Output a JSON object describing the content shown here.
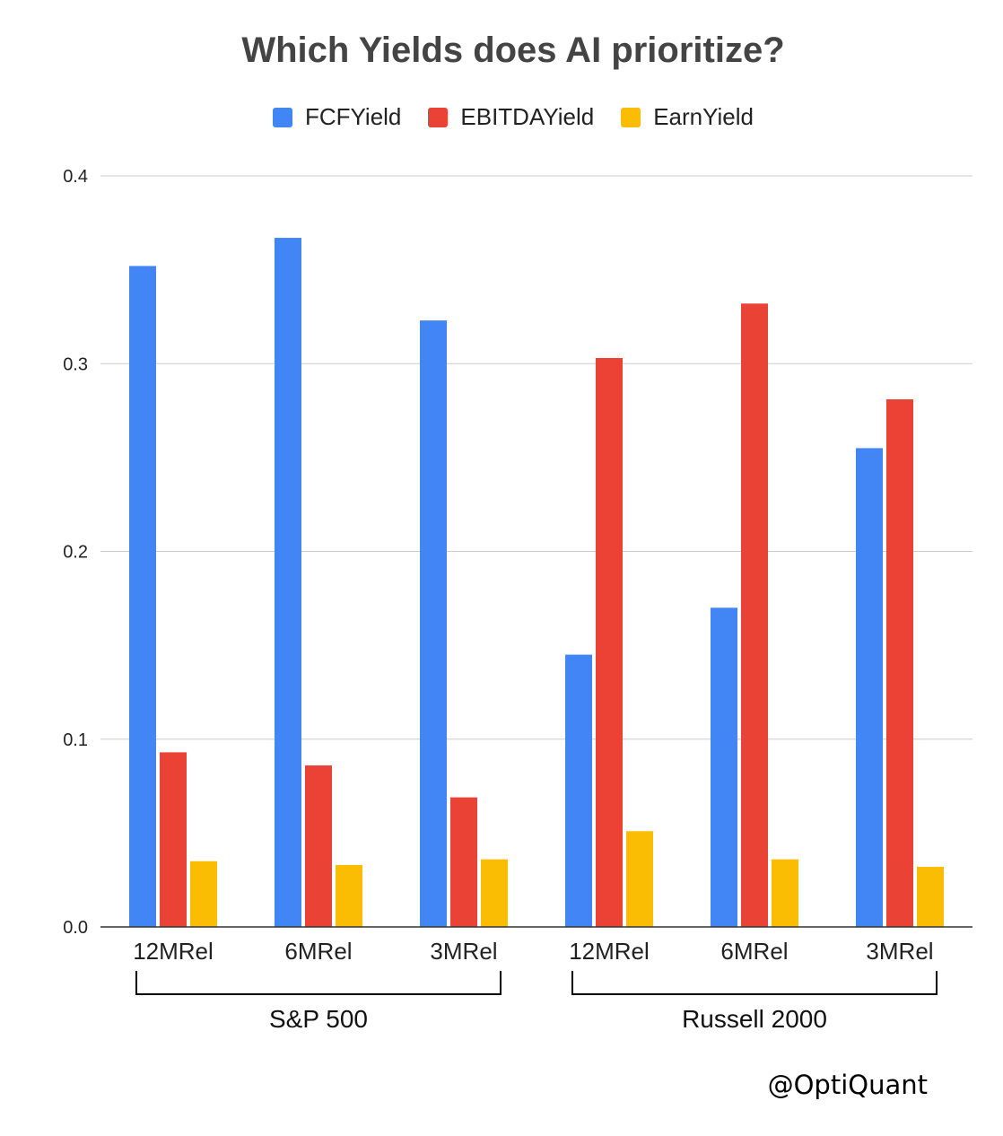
{
  "chart_data": {
    "type": "bar",
    "title": "Which Yields does AI prioritize?",
    "categories": [
      "12MRel",
      "6MRel",
      "3MRel",
      "12MRel",
      "6MRel",
      "3MRel"
    ],
    "groups": [
      {
        "label": "S&P 500",
        "categories": [
          "12MRel",
          "6MRel",
          "3MRel"
        ]
      },
      {
        "label": "Russell 2000",
        "categories": [
          "12MRel",
          "6MRel",
          "3MRel"
        ]
      }
    ],
    "series": [
      {
        "name": "FCFYield",
        "color": "#4285F4",
        "values": [
          0.352,
          0.367,
          0.323,
          0.145,
          0.17,
          0.255
        ]
      },
      {
        "name": "EBITDAYield",
        "color": "#EA4335",
        "values": [
          0.093,
          0.086,
          0.069,
          0.303,
          0.332,
          0.281
        ]
      },
      {
        "name": "EarnYield",
        "color": "#FBBC04",
        "values": [
          0.035,
          0.033,
          0.036,
          0.051,
          0.036,
          0.032
        ]
      }
    ],
    "ylim": [
      0,
      0.4
    ],
    "yticks": [
      "0.0",
      "0.1",
      "0.2",
      "0.3",
      "0.4"
    ],
    "legend_position": "top-center",
    "grid": true
  },
  "watermark": "@OptiQuant"
}
